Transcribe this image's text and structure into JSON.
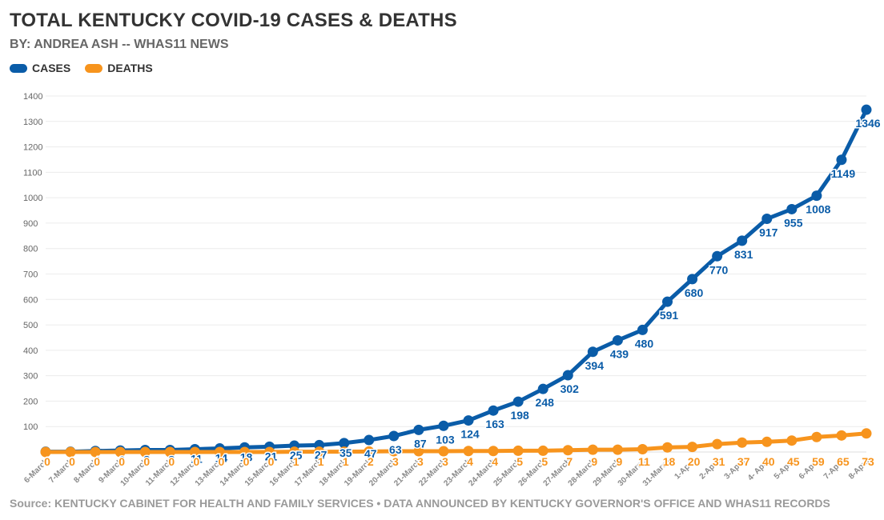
{
  "header": {
    "title": "TOTAL KENTUCKY COVID-19 CASES & DEATHS",
    "byline": "BY: ANDREA ASH -- WHAS11 NEWS"
  },
  "legend": [
    {
      "label": "CASES",
      "color": "#0a5ca8"
    },
    {
      "label": "DEATHS",
      "color": "#f7941d"
    }
  ],
  "footer": {
    "source": "Source: KENTUCKY CABINET FOR HEALTH AND FAMILY SERVICES • DATA ANNOUNCED BY KENTUCKY GOVERNOR'S OFFICE AND WHAS11 RECORDS"
  },
  "chart_data": {
    "type": "line",
    "title": "TOTAL KENTUCKY COVID-19 CASES & DEATHS",
    "subtitle": "BY: ANDREA ASH -- WHAS11 NEWS",
    "xlabel": "",
    "ylabel": "",
    "ylim": [
      0,
      1400
    ],
    "yticks": [
      100,
      200,
      300,
      400,
      500,
      600,
      700,
      800,
      900,
      1000,
      1100,
      1200,
      1300,
      1400
    ],
    "grid": true,
    "legend_position": "top-left",
    "categories": [
      "6-March",
      "7-March",
      "8-March",
      "9-March",
      "10-March",
      "11-March",
      "12-March",
      "13-March",
      "14-March",
      "15-March",
      "16-March",
      "17-March",
      "18-March",
      "19-March",
      "20-March",
      "21-March",
      "22-March",
      "23-March",
      "24-March",
      "25-March",
      "26-March",
      "27-March",
      "28-March",
      "29-March",
      "30-March",
      "31-March",
      "1-April",
      "2-April",
      "3-April",
      "4- April",
      "5-April",
      "6-April",
      "7-April",
      "8-April"
    ],
    "series": [
      {
        "name": "CASES",
        "color": "#0a5ca8",
        "values": [
          1,
          1,
          4,
          6,
          8,
          8,
          11,
          14,
          18,
          21,
          25,
          27,
          35,
          47,
          63,
          87,
          103,
          124,
          163,
          198,
          248,
          302,
          394,
          439,
          480,
          591,
          680,
          770,
          831,
          917,
          955,
          1008,
          1149,
          1346
        ]
      },
      {
        "name": "DEATHS",
        "color": "#f7941d",
        "values": [
          0,
          0,
          0,
          0,
          0,
          0,
          0,
          0,
          0,
          0,
          1,
          1,
          1,
          2,
          3,
          3,
          3,
          4,
          4,
          5,
          5,
          7,
          9,
          9,
          11,
          18,
          20,
          31,
          37,
          40,
          45,
          59,
          65,
          73
        ]
      }
    ]
  }
}
